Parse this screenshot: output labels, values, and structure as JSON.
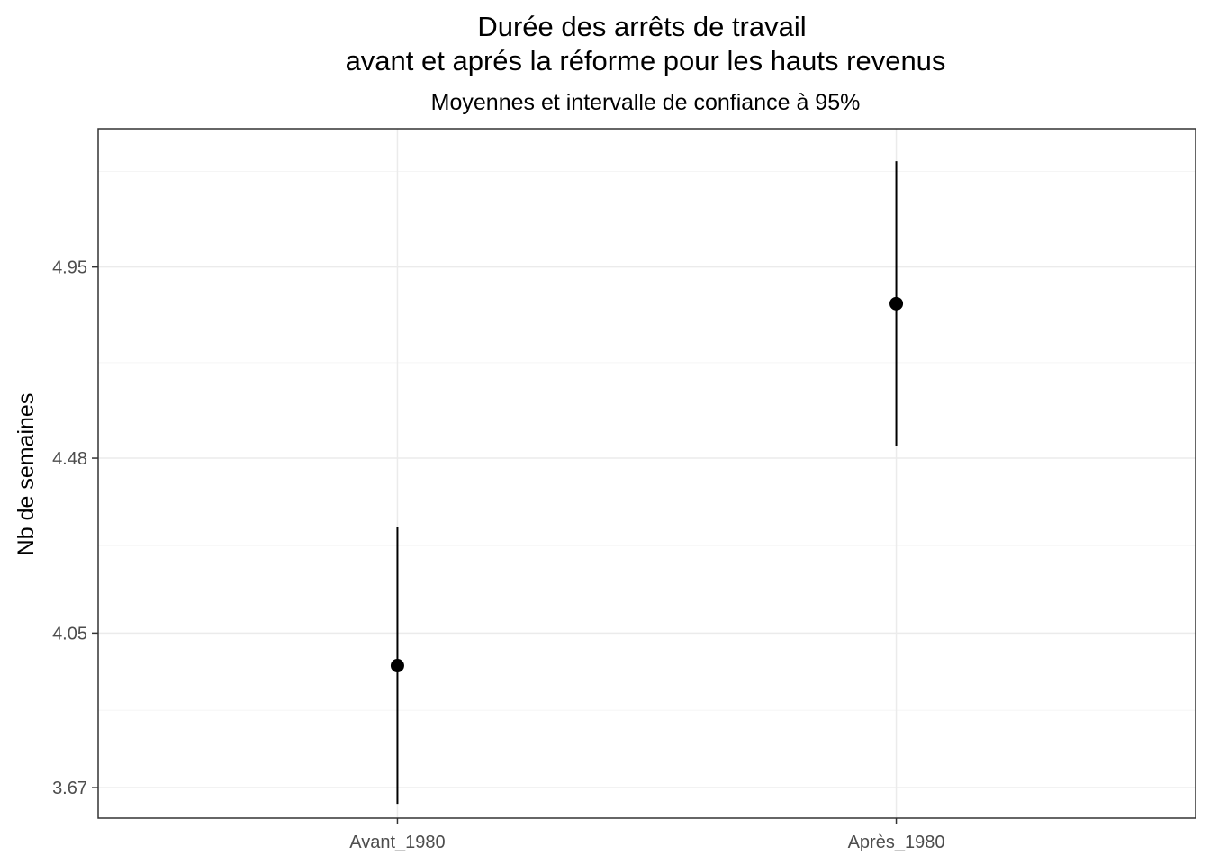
{
  "chart_data": {
    "type": "scatter",
    "title_lines": [
      "Durée des arrêts de travail",
      "avant et aprés la réforme pour les hauts revenus"
    ],
    "subtitle": "Moyennes et intervalle de confiance à 95%",
    "xlabel": "",
    "ylabel": "Nb de semaines",
    "categories": [
      "Avant_1980",
      "Après_1980"
    ],
    "points": [
      {
        "category": "Avant_1980",
        "mean": 3.97,
        "ci_low": 3.63,
        "ci_high": 4.31
      },
      {
        "category": "Après_1980",
        "mean": 4.86,
        "ci_low": 4.51,
        "ci_high": 5.21
      }
    ],
    "y_ticks": [
      3.67,
      4.05,
      4.48,
      4.95
    ],
    "y_tick_labels": [
      "3.67",
      "4.05",
      "4.48",
      "4.95"
    ],
    "ylim": [
      3.595,
      5.29
    ],
    "grid": true,
    "colors": {
      "background": "#ffffff",
      "panel_border": "#333333",
      "grid_major": "#ebebeb",
      "grid_minor": "#f5f5f5",
      "points": "#000000",
      "tick_text": "#4d4d4d"
    }
  }
}
